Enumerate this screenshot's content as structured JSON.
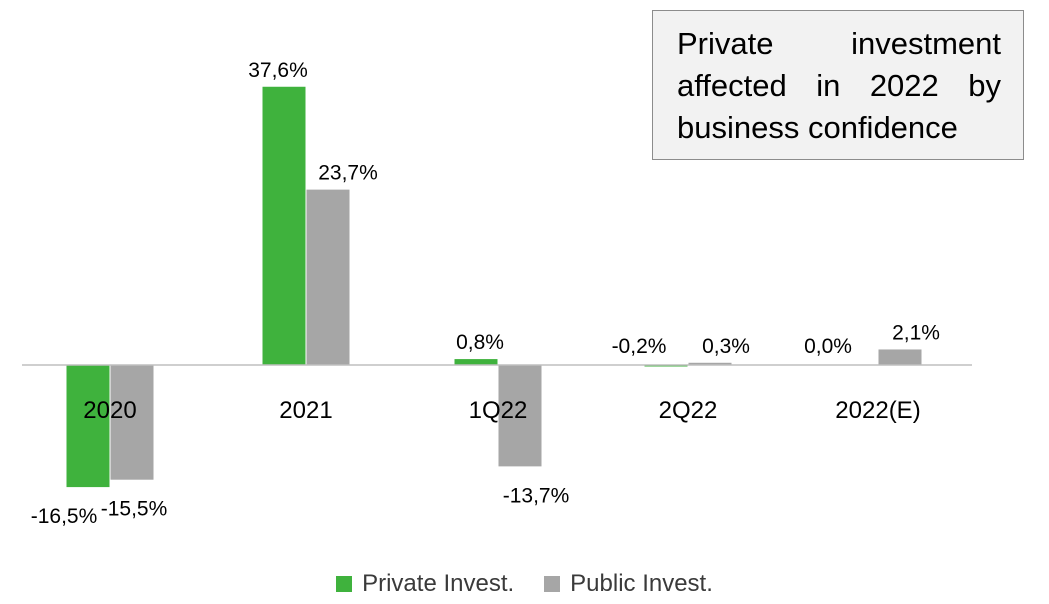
{
  "callout": {
    "text": "Private investment affected in 2022 by business confidence"
  },
  "colors": {
    "private": "#3fb23d",
    "public": "#a6a6a6",
    "axis": "#bfbfbf",
    "label": "#000000"
  },
  "chart_data": {
    "type": "bar",
    "categories": [
      "2020",
      "2021",
      "1Q22",
      "2Q22",
      "2022(E)"
    ],
    "series": [
      {
        "name": "Private Invest.",
        "values": [
          -16.5,
          37.6,
          0.8,
          -0.2,
          0.0
        ],
        "labels": [
          "-16,5%",
          "37,6%",
          "0,8%",
          "-0,2%",
          "0,0%"
        ]
      },
      {
        "name": "Public Invest.",
        "values": [
          -15.5,
          23.7,
          -13.7,
          0.3,
          2.1
        ],
        "labels": [
          "-15,5%",
          "23,7%",
          "-13,7%",
          "0,3%",
          "2,1%"
        ]
      }
    ],
    "legend_position": "bottom",
    "grid": false
  }
}
